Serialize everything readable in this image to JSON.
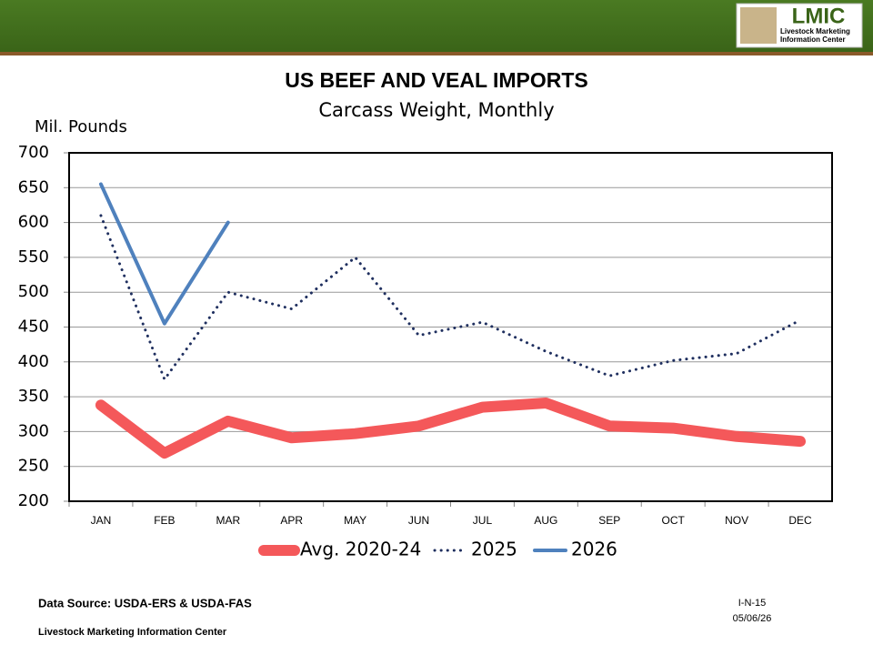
{
  "header": {
    "logo": "LMIC",
    "logo_lines": [
      "Livestock Marketing",
      "Information Center"
    ]
  },
  "chart_data": {
    "type": "line",
    "title": "US BEEF AND VEAL IMPORTS",
    "subtitle": "Carcass Weight, Monthly",
    "y_label": "Mil. Pounds",
    "categories": [
      "JAN",
      "FEB",
      "MAR",
      "APR",
      "MAY",
      "JUN",
      "JUL",
      "AUG",
      "SEP",
      "OCT",
      "NOV",
      "DEC"
    ],
    "series": [
      {
        "name": "Avg. 2020-24",
        "color": "#f4585a",
        "line_style": "solid",
        "values": [
          338,
          269,
          315,
          291,
          297,
          308,
          335,
          341,
          308,
          305,
          293,
          286
        ]
      },
      {
        "name": "2025",
        "color": "#1f2f5f",
        "line_style": "dotted",
        "values": [
          610,
          375,
          500,
          476,
          550,
          438,
          457,
          415,
          380,
          402,
          412,
          460
        ]
      },
      {
        "name": "2026",
        "color": "#4f81bd",
        "line_style": "solid",
        "values": [
          655,
          455,
          600,
          null,
          null,
          null,
          null,
          null,
          null,
          null,
          null,
          null
        ]
      }
    ],
    "ylim": [
      200,
      700
    ],
    "yticks": [
      200,
      250,
      300,
      350,
      400,
      450,
      500,
      550,
      600,
      650,
      700
    ],
    "grid": true,
    "legend": "bottom"
  },
  "footer": {
    "source": "Data Source:  USDA-ERS & USDA-FAS",
    "org": "Livestock Marketing Information Center",
    "code": "I-N-15",
    "date": "05/06/26"
  }
}
